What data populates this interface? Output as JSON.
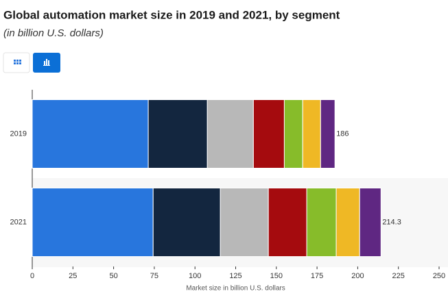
{
  "chart_data": {
    "type": "stacked-bar-horizontal",
    "title": "Global automation market size in 2019 and 2021, by segment",
    "subtitle": "(in billion U.S. dollars)",
    "x_label": "Market size in billion U.S. dollars",
    "categories": [
      "2019",
      "2021"
    ],
    "series": [
      {
        "color": "#2876dd",
        "values": [
          71.3,
          74.3
        ]
      },
      {
        "color": "#13263f",
        "values": [
          36.3,
          41.3
        ]
      },
      {
        "color": "#b8b8b8",
        "values": [
          28.3,
          29.5
        ]
      },
      {
        "color": "#a50b0e",
        "values": [
          19,
          23.6
        ]
      },
      {
        "color": "#87bc2a",
        "values": [
          11.3,
          18.1
        ]
      },
      {
        "color": "#efb825",
        "values": [
          11,
          14.4
        ]
      },
      {
        "color": "#5f2782",
        "values": [
          8.8,
          13.1
        ]
      }
    ],
    "totals": [
      186,
      214.3
    ],
    "xlim": [
      0,
      250
    ],
    "xticks": [
      0,
      25,
      50,
      75,
      100,
      125,
      150,
      175,
      200,
      225,
      250
    ]
  }
}
